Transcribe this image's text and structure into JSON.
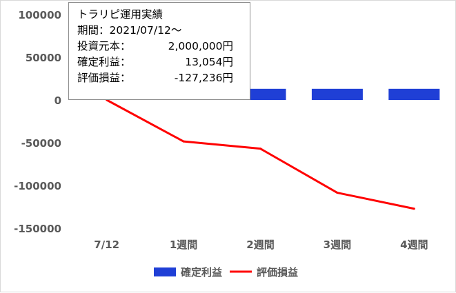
{
  "info_box": {
    "title": "トラリピ運用実績",
    "period": "期間：2021/07/12～",
    "rows": [
      {
        "label": "投資元本：",
        "value": "2,000,000円"
      },
      {
        "label": "確定利益：",
        "value": "13,054円"
      },
      {
        "label": "評価損益：",
        "value": "-127,236円"
      }
    ]
  },
  "chart_data": {
    "type": "bar+line",
    "categories": [
      "7/12",
      "1週間",
      "2週間",
      "3週間",
      "4週間"
    ],
    "series": [
      {
        "name": "確定利益",
        "type": "bar",
        "color": "#1f3fd6",
        "values": [
          null,
          13054,
          13054,
          13054,
          13054
        ]
      },
      {
        "name": "評価損益",
        "type": "line",
        "color": "#ff0000",
        "values": [
          0,
          -48500,
          -57000,
          -108500,
          -127236
        ]
      }
    ],
    "y_ticks": [
      "100000",
      "50000",
      "0",
      "-50000",
      "-100000",
      "-150000"
    ],
    "ylim": [
      -150000,
      100000
    ],
    "grid": false,
    "legend_position": "bottom"
  }
}
